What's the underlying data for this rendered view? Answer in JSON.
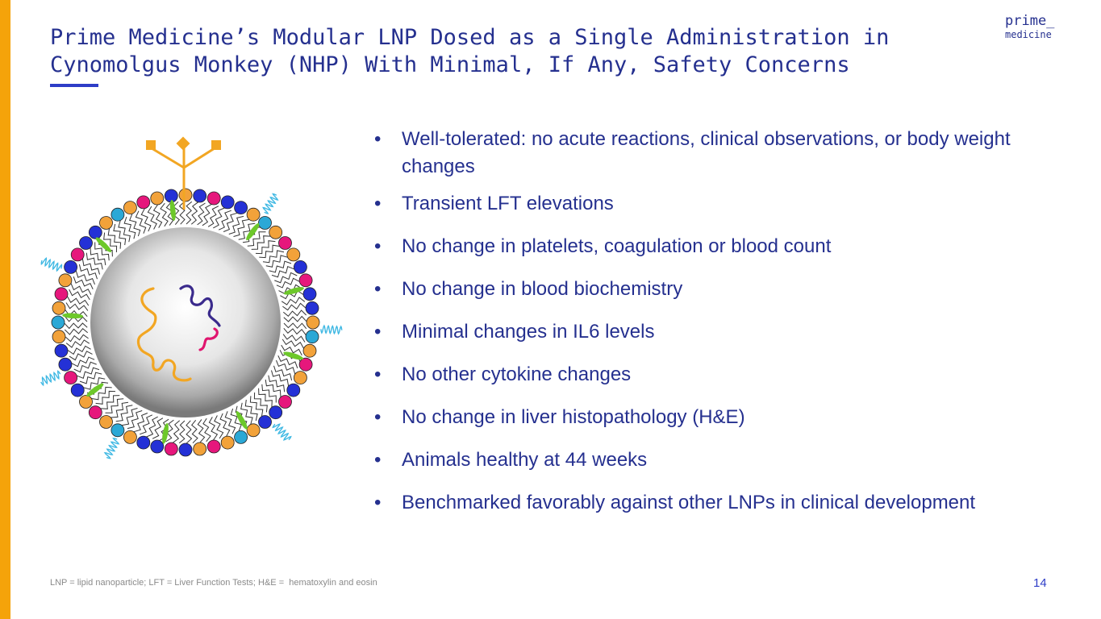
{
  "slide": {
    "title_line1": "Prime Medicine’s Modular LNP Dosed as a Single Administration in",
    "title_line2": "Cynomolgus Monkey (NHP) With Minimal, If Any, Safety Concerns",
    "logo_line1": "prime_",
    "logo_line2": "medicine",
    "bullets": [
      "Well-tolerated: no acute reactions, clinical observations, or body weight changes",
      "Transient LFT elevations",
      "No change in platelets, coagulation or blood count",
      "No change in blood biochemistry",
      "Minimal changes in IL6 levels",
      "No other cytokine changes",
      "No change in liver histopathology (H&E)",
      "Animals healthy at 44 weeks",
      "Benchmarked favorably against other LNPs in clinical development"
    ],
    "footnote": "LNP = lipid nanoparticle; LFT = Liver Function Tests; H&E =  hematoxylin and eosin",
    "page_number": "14"
  },
  "colors": {
    "accent_orange": "#F5A30A",
    "title_navy": "#25308F",
    "underline_blue": "#2E3DC7",
    "lipid_orange": "#F2A23A",
    "lipid_blue": "#2431D6",
    "lipid_pink": "#E6177C",
    "lipid_cyan": "#2BA8D6",
    "cholesterol_green": "#6DC82A",
    "peg_cyan": "#3FB8E3",
    "rna_orange": "#F2A623",
    "rna_purple": "#3A2A8C",
    "rna_pink": "#E0156E"
  },
  "illustration": {
    "icon": "lipid-nanoparticle-icon"
  }
}
